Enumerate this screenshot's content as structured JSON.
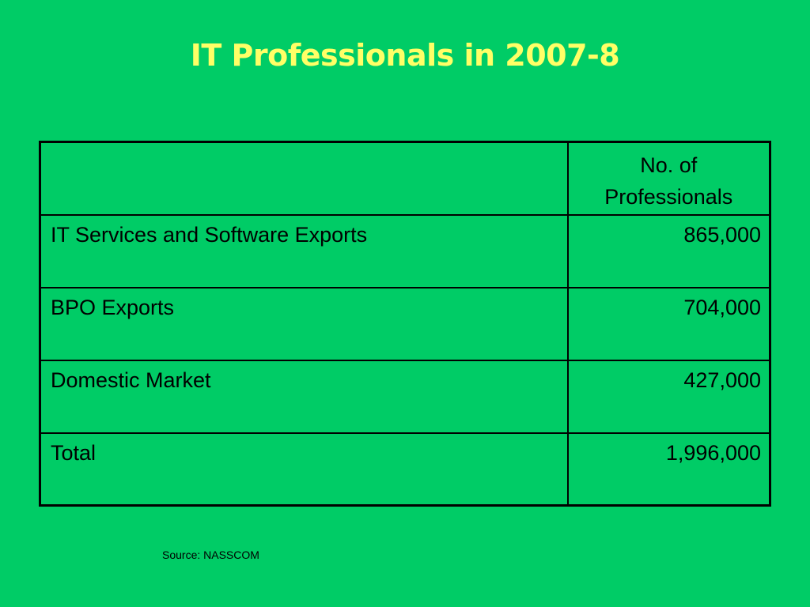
{
  "slide": {
    "title": "IT Professionals in 2007-8",
    "title_color": "#FFFF66",
    "background_color": "#00CC66",
    "text_color": "#000000",
    "table": {
      "header": {
        "label": "",
        "value_line1": "No. of",
        "value_line2": "Professionals"
      },
      "rows": [
        {
          "label": "IT Services and Software Exports",
          "value": "865,000"
        },
        {
          "label": "BPO Exports",
          "value": "704,000"
        },
        {
          "label": "Domestic Market",
          "value": "427,000"
        },
        {
          "label": "Total",
          "value": "1,996,000"
        }
      ]
    },
    "source": "Source: NASSCOM"
  }
}
